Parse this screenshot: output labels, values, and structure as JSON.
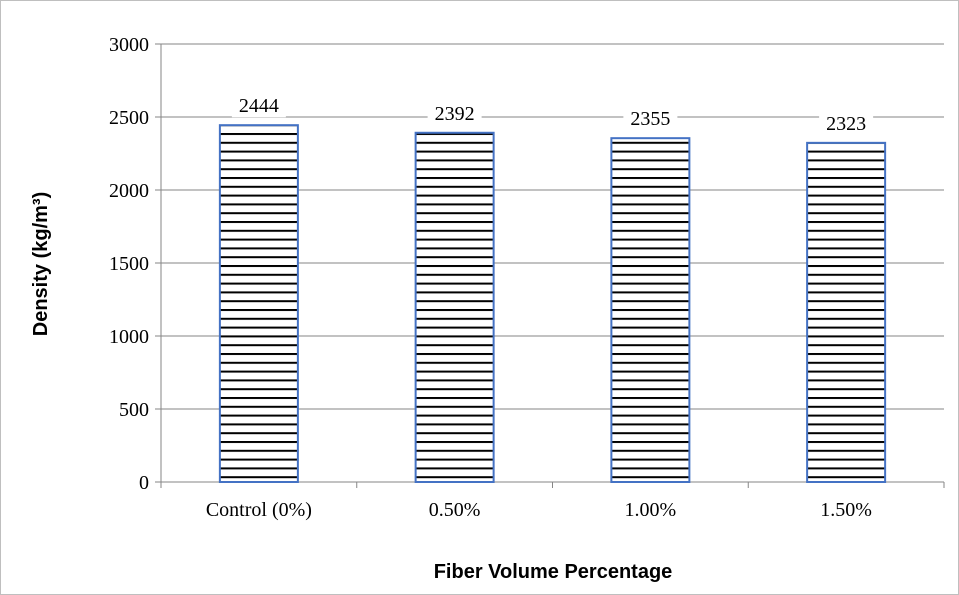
{
  "chart_data": {
    "type": "bar",
    "title": "",
    "xlabel": "Fiber Volume Percentage",
    "ylabel": "Density (kg/m³)",
    "categories": [
      "Control (0%)",
      "0.50%",
      "1.00%",
      "1.50%"
    ],
    "values": [
      2444,
      2392,
      2355,
      2323
    ],
    "data_labels": [
      "2444",
      "2392",
      "2355",
      "2323"
    ],
    "ylim": [
      0,
      3000
    ],
    "yticks": [
      0,
      500,
      1000,
      1500,
      2000,
      2500,
      3000
    ],
    "grid": true,
    "legend": "none",
    "bar_outline_color": "#4472c4",
    "bar_pattern": "horizontal-stripes",
    "bar_pattern_color": "#000000"
  }
}
